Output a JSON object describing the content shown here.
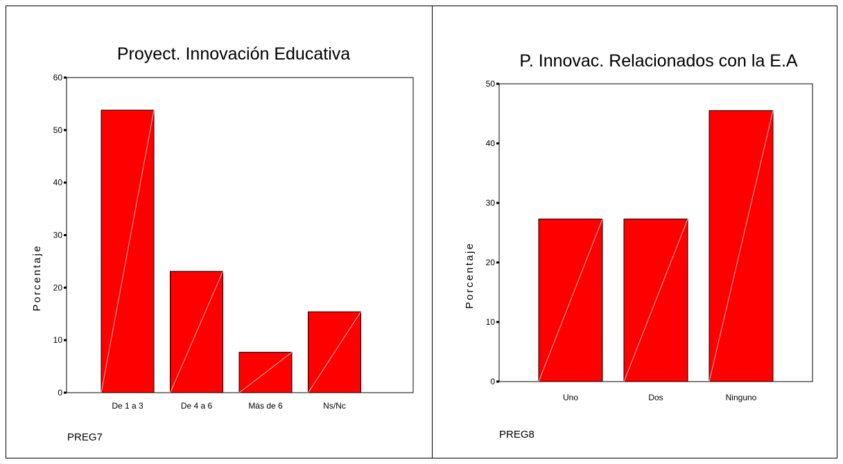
{
  "chart_data": [
    {
      "type": "bar",
      "title": "Proyect. Innovación Educativa",
      "xlabel": "PREG7",
      "ylabel": "Porcentaje",
      "categories": [
        "De 1 a 3",
        "De 4 a 6",
        "Más de 6",
        "Ns/Nc"
      ],
      "values": [
        53.8,
        23.1,
        7.7,
        15.4
      ],
      "ylim": [
        0,
        60
      ],
      "yticks": [
        0,
        10,
        20,
        30,
        40,
        50,
        60
      ],
      "bar_color": "#ff0000",
      "grid": false,
      "legend": "none"
    },
    {
      "type": "bar",
      "title": "P. Innovac. Relacionados con la E.A",
      "xlabel": "PREG8",
      "ylabel": "Porcentaje",
      "categories": [
        "Uno",
        "Dos",
        "Ninguno"
      ],
      "values": [
        27.3,
        27.3,
        45.5
      ],
      "ylim": [
        0,
        50
      ],
      "yticks": [
        0,
        10,
        20,
        30,
        40,
        50
      ],
      "bar_color": "#ff0000",
      "grid": false,
      "legend": "none"
    }
  ]
}
